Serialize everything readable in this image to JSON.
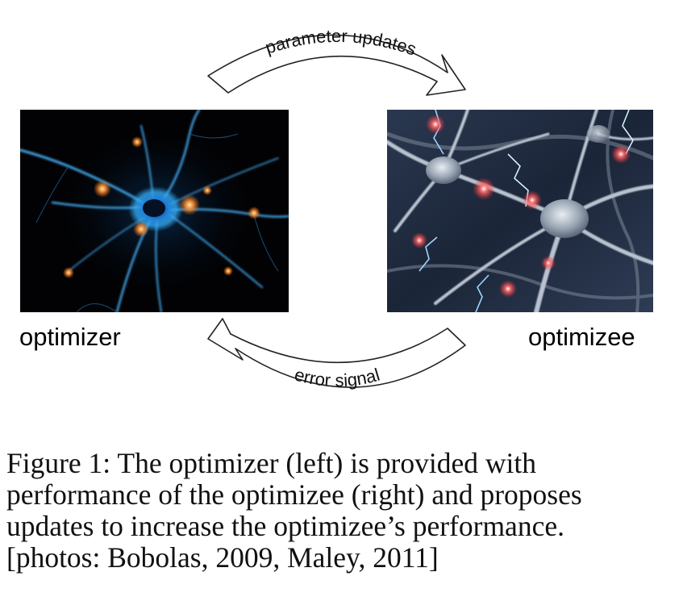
{
  "panels": {
    "left_label": "optimizer",
    "right_label": "optimizee"
  },
  "arrows": {
    "top_label": "parameter updates",
    "bottom_label": "error signal"
  },
  "caption": {
    "lines": [
      "Figure 1: The optimizer (left) is provided with",
      "performance of the optimizee (right) and proposes",
      "updates to increase the optimizee’s performance.",
      "[photos: Bobolas, 2009, Maley, 2011]"
    ]
  }
}
